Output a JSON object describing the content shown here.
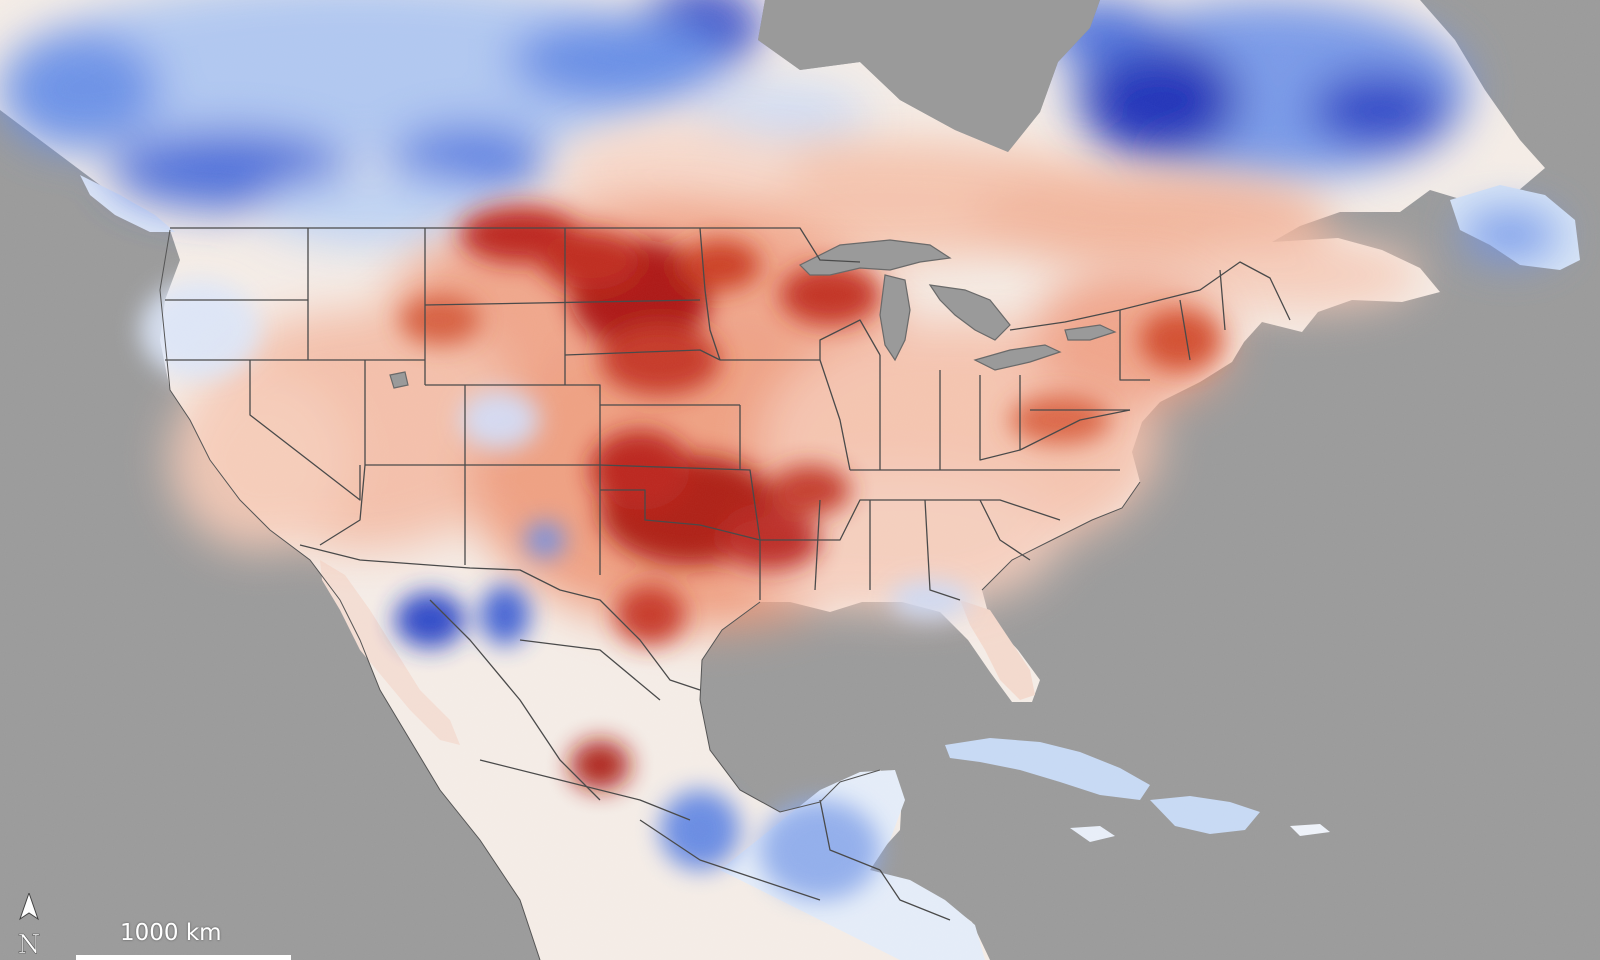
{
  "map": {
    "land_color": "#9a9a9a",
    "water_color": "#9a9a9a",
    "border_color": "#4a4a4a",
    "anomaly_colors": {
      "very_cold": "#0b1fb8",
      "cold": "#4f7fe6",
      "cool": "#bcd3f5",
      "neutral": "#f7f2ee",
      "warm": "#f3b59b",
      "hot": "#de5a3a",
      "very_hot": "#a90f0f"
    }
  },
  "scale_bar": {
    "label": "1000 km"
  },
  "north_arrow": {
    "icon": "north-arrow-icon"
  }
}
